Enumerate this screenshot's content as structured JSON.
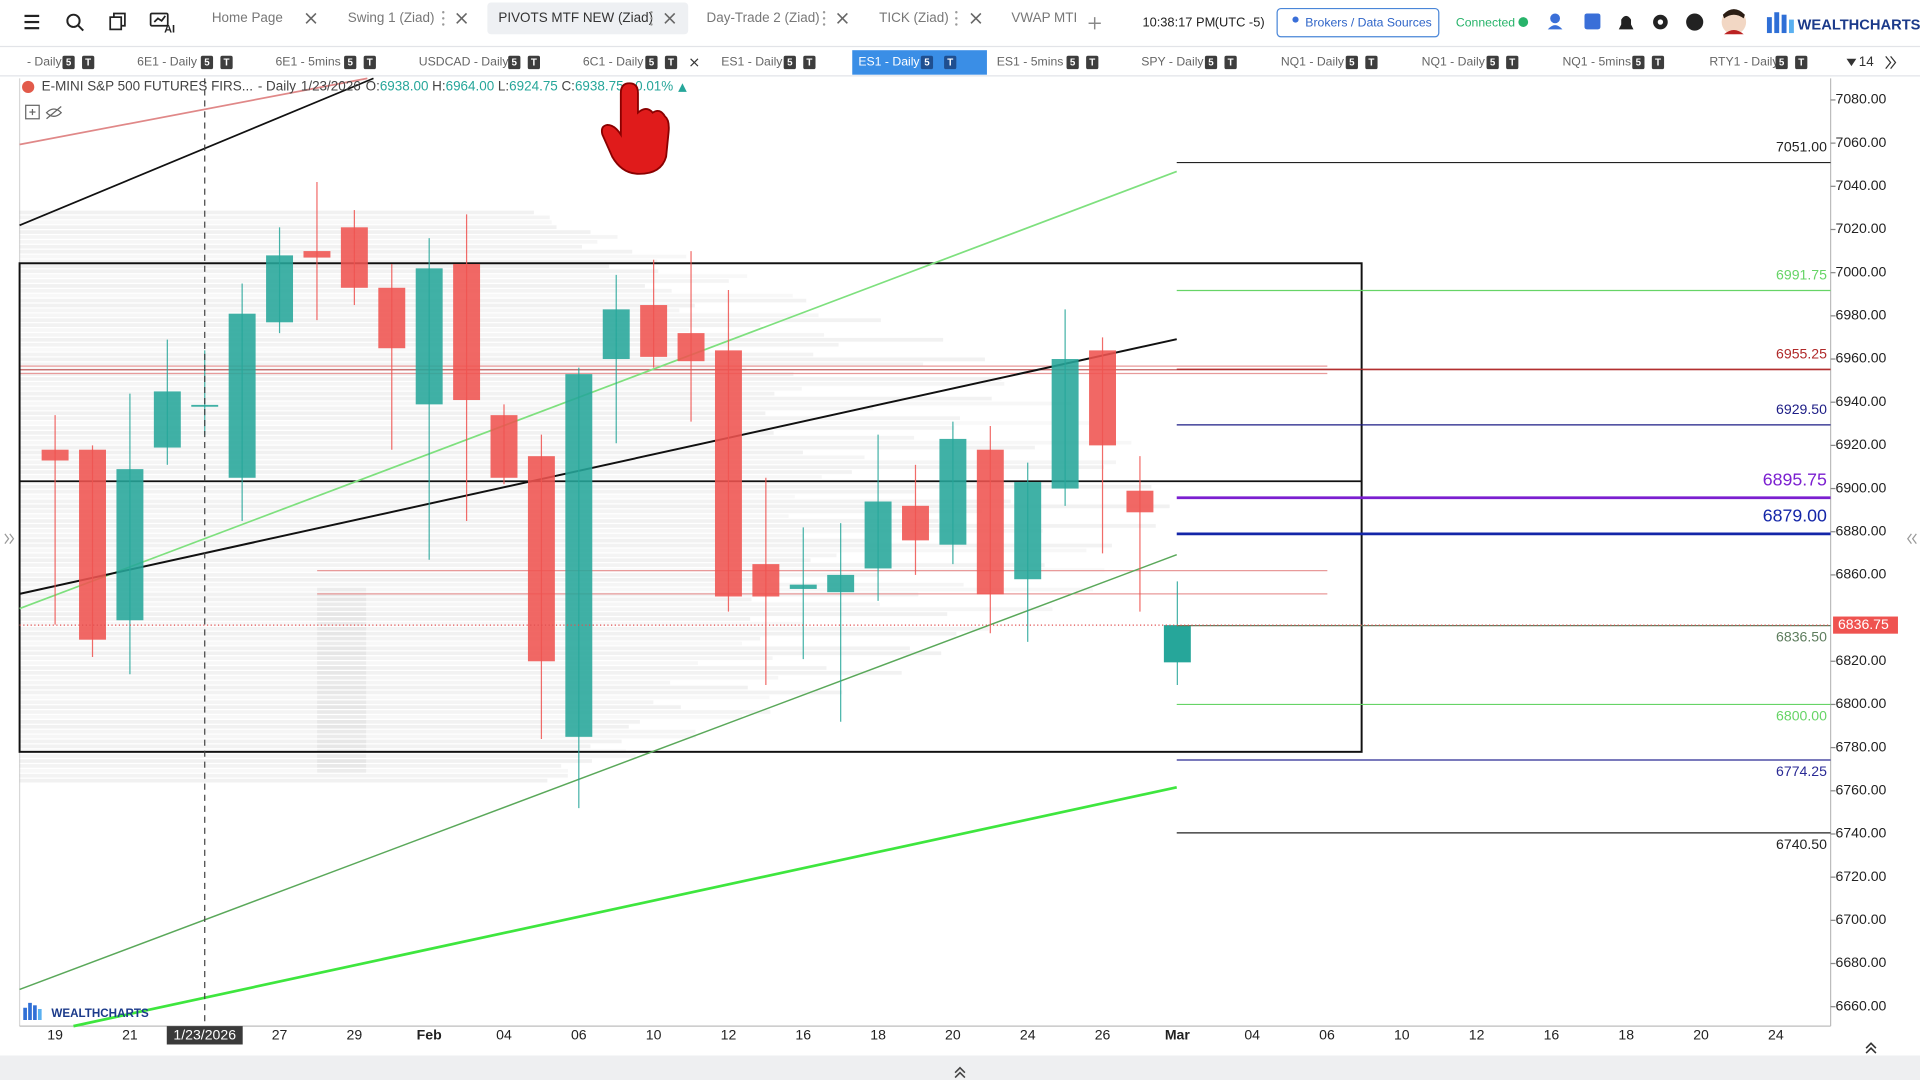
{
  "toolbar": {
    "ai": "AI",
    "tabs": [
      "Home Page",
      "Swing 1 (Ziad)",
      "PIVOTS MTF NEW (Ziad)",
      "Day-Trade 2 (Ziad)",
      "TICK (Ziad)",
      "VWAP MTI"
    ],
    "clock": "10:38:17 PM",
    "timezone": "(UTC -5)",
    "brokers": "Brokers / Data Sources",
    "status": "Connected",
    "brand": "WEALTHCHARTS"
  },
  "symbol_tabs": {
    "items": [
      "- Daily",
      "6E1 - Daily",
      "6E1 - 5mins",
      "USDCAD - Daily",
      "6C1 - Daily",
      "ES1 - Daily",
      "ES1 - Daily",
      "ES1 - 5mins",
      "SPY - Daily",
      "NQ1 - Daily",
      "NQ1 - Daily",
      "NQ1 - 5mins",
      "RTY1 - Daily"
    ],
    "active": 6,
    "badges": [
      "5",
      "T"
    ],
    "count": "14"
  },
  "chart": {
    "symbol": "E-MINI S&P 500 FUTURES FIRS...",
    "interval": "- Daily",
    "date": "1/23/2026",
    "ohlc": [
      {
        "key": "O:",
        "value": "6938.00"
      },
      {
        "key": "H:",
        "value": "6964.00"
      },
      {
        "key": "L:",
        "value": "6924.75"
      },
      {
        "key": "C:",
        "value": "6938.75"
      }
    ],
    "change": "+0.01%",
    "ylim": [
      6651,
      7090
    ],
    "price_ticks": [
      {
        "value": 7080,
        "label": "7080.00"
      },
      {
        "value": 7060,
        "label": "7060.00"
      },
      {
        "value": 7040,
        "label": "7040.00"
      },
      {
        "value": 7020,
        "label": "7020.00"
      },
      {
        "value": 7000,
        "label": "7000.00"
      },
      {
        "value": 6980,
        "label": "6980.00"
      },
      {
        "value": 6960,
        "label": "6960.00"
      },
      {
        "value": 6940,
        "label": "6940.00"
      },
      {
        "value": 6920,
        "label": "6920.00"
      },
      {
        "value": 6900,
        "label": "6900.00"
      },
      {
        "value": 6880,
        "label": "6880.00"
      },
      {
        "value": 6860,
        "label": "6860.00"
      },
      {
        "value": 6820,
        "label": "6820.00"
      },
      {
        "value": 6800,
        "label": "6800.00"
      },
      {
        "value": 6780,
        "label": "6780.00"
      },
      {
        "value": 6760,
        "label": "6760.00"
      },
      {
        "value": 6740,
        "label": "6740.00"
      },
      {
        "value": 6720,
        "label": "6720.00"
      },
      {
        "value": 6700,
        "label": "6700.00"
      },
      {
        "value": 6680,
        "label": "6680.00"
      },
      {
        "value": 6660,
        "label": "6660.00"
      }
    ],
    "date_labels": [
      "19",
      "21",
      "1/23/2026",
      "27",
      "29",
      "Feb",
      "04",
      "06",
      "10",
      "12",
      "16",
      "18",
      "20",
      "24",
      "26",
      "Mar",
      "04",
      "06",
      "10",
      "12",
      "16",
      "18",
      "20",
      "24"
    ],
    "up_color": "#26a69a",
    "down_color": "#ef5350",
    "candles": [
      {
        "open": 6918,
        "high": 6934,
        "low": 6837,
        "close": 6913
      },
      {
        "open": 6918,
        "high": 6920,
        "low": 6822,
        "close": 6830
      },
      {
        "open": 6839,
        "high": 6944,
        "low": 6814,
        "close": 6909
      },
      {
        "open": 6919,
        "high": 6969,
        "low": 6911,
        "close": 6945
      },
      {
        "open": 6938,
        "high": 6964,
        "low": 6924.75,
        "close": 6938.75
      },
      {
        "open": 6905,
        "high": 6995,
        "low": 6885,
        "close": 6981
      },
      {
        "open": 6977,
        "high": 7021,
        "low": 6972,
        "close": 7008
      },
      {
        "open": 7010,
        "high": 7042,
        "low": 6978,
        "close": 7007
      },
      {
        "open": 7021,
        "high": 7029,
        "low": 6985,
        "close": 6993
      },
      {
        "open": 6993,
        "high": 7004,
        "low": 6918,
        "close": 6965
      },
      {
        "open": 6939,
        "high": 7016,
        "low": 6867,
        "close": 7002
      },
      {
        "open": 7004,
        "high": 7027,
        "low": 6885,
        "close": 6941
      },
      {
        "open": 6934,
        "high": 6939,
        "low": 6902,
        "close": 6905
      },
      {
        "open": 6915,
        "high": 6925,
        "low": 6784,
        "close": 6820
      },
      {
        "open": 6785,
        "high": 6956,
        "low": 6752,
        "close": 6953
      },
      {
        "open": 6960,
        "high": 6999,
        "low": 6921,
        "close": 6983
      },
      {
        "open": 6985,
        "high": 7006,
        "low": 6956,
        "close": 6961
      },
      {
        "open": 6972,
        "high": 7010,
        "low": 6931,
        "close": 6959
      },
      {
        "open": 6964,
        "high": 6992,
        "low": 6843,
        "close": 6850
      },
      {
        "open": 6865,
        "high": 6905,
        "low": 6809,
        "close": 6850
      },
      {
        "open": 6853.5,
        "high": 6882,
        "low": 6821,
        "close": 6855.5
      },
      {
        "open": 6852,
        "high": 6884,
        "low": 6792,
        "close": 6860
      },
      {
        "open": 6863,
        "high": 6925,
        "low": 6848,
        "close": 6894
      },
      {
        "open": 6892,
        "high": 6911,
        "low": 6860,
        "close": 6876
      },
      {
        "open": 6874,
        "high": 6931,
        "low": 6865,
        "close": 6923
      },
      {
        "open": 6918,
        "high": 6929,
        "low": 6833,
        "close": 6851
      },
      {
        "open": 6858,
        "high": 6912,
        "low": 6829,
        "close": 6903
      },
      {
        "open": 6900,
        "high": 6983,
        "low": 6892,
        "close": 6960
      },
      {
        "open": 6964,
        "high": 6970,
        "low": 6870,
        "close": 6920
      },
      {
        "open": 6899,
        "high": 6915,
        "low": 6843,
        "close": 6889
      },
      {
        "open": 6819.5,
        "high": 6857,
        "low": 6809,
        "close": 6836.75
      }
    ],
    "levels": [
      {
        "value": 7051,
        "label": "7051.00",
        "color": "#222222"
      },
      {
        "value": 6991.75,
        "label": "6991.75",
        "color": "#66d466"
      },
      {
        "value": 6955.25,
        "label": "6955.25",
        "color": "#b02a2a"
      },
      {
        "value": 6929.5,
        "label": "6929.50",
        "color": "#1c1c85"
      },
      {
        "value": 6895.75,
        "label": "6895.75",
        "color": "#7b1fd0",
        "large": true
      },
      {
        "value": 6879,
        "label": "6879.00",
        "color": "#1426a8",
        "large": true
      },
      {
        "value": 6836.5,
        "label": "6836.50",
        "color": "#5e7d5e"
      },
      {
        "value": 6800,
        "label": "6800.00",
        "color": "#66d466"
      },
      {
        "value": 6774.25,
        "label": "6774.25",
        "color": "#2a2a95"
      },
      {
        "value": 6740.5,
        "label": "6740.50",
        "color": "#222222"
      }
    ],
    "last_price": {
      "value": 6836.75,
      "label": "6836.75"
    },
    "watermark": "WEALTHCHARTS"
  }
}
